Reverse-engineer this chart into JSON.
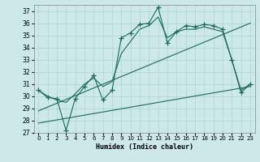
{
  "title": "",
  "xlabel": "Humidex (Indice chaleur)",
  "ylabel": "",
  "bg_color": "#cce8e8",
  "line_color": "#1a6b5a",
  "grid_color": "#aad4d4",
  "xlim": [
    -0.5,
    23.5
  ],
  "ylim": [
    27,
    37.5
  ],
  "yticks": [
    27,
    28,
    29,
    30,
    31,
    32,
    33,
    34,
    35,
    36,
    37
  ],
  "xticks": [
    0,
    1,
    2,
    3,
    4,
    5,
    6,
    7,
    8,
    9,
    10,
    11,
    12,
    13,
    14,
    15,
    16,
    17,
    18,
    19,
    20,
    21,
    22,
    23
  ],
  "series": [
    {
      "x": [
        0,
        1,
        2,
        3,
        4,
        5,
        6,
        7,
        8,
        9,
        10,
        11,
        12,
        13,
        14,
        15,
        16,
        17,
        18,
        19,
        20,
        21,
        22,
        23
      ],
      "y": [
        30.5,
        29.9,
        29.8,
        27.2,
        29.8,
        30.8,
        31.7,
        29.7,
        30.5,
        34.8,
        35.2,
        35.9,
        36.0,
        37.3,
        34.4,
        35.3,
        35.8,
        35.7,
        35.9,
        35.8,
        35.5,
        33.0,
        30.3,
        31.0
      ],
      "marker": "+",
      "markersize": 4,
      "lw": 0.8
    },
    {
      "x": [
        0,
        1,
        2,
        3,
        4,
        5,
        6,
        7,
        8,
        9,
        10,
        11,
        12,
        13,
        14,
        15,
        16,
        17,
        18,
        19,
        20,
        21,
        22,
        23
      ],
      "y": [
        30.5,
        30.0,
        29.7,
        29.5,
        30.2,
        31.0,
        31.5,
        30.8,
        31.2,
        33.5,
        34.5,
        35.5,
        35.8,
        36.5,
        34.8,
        35.3,
        35.5,
        35.5,
        35.7,
        35.5,
        35.3,
        33.0,
        30.5,
        31.0
      ],
      "marker": null,
      "markersize": 0,
      "lw": 0.8
    },
    {
      "x": [
        0,
        23
      ],
      "y": [
        27.8,
        30.8
      ],
      "marker": null,
      "markersize": 0,
      "lw": 0.8
    },
    {
      "x": [
        0,
        23
      ],
      "y": [
        28.8,
        36.0
      ],
      "marker": null,
      "markersize": 0,
      "lw": 0.8
    }
  ]
}
